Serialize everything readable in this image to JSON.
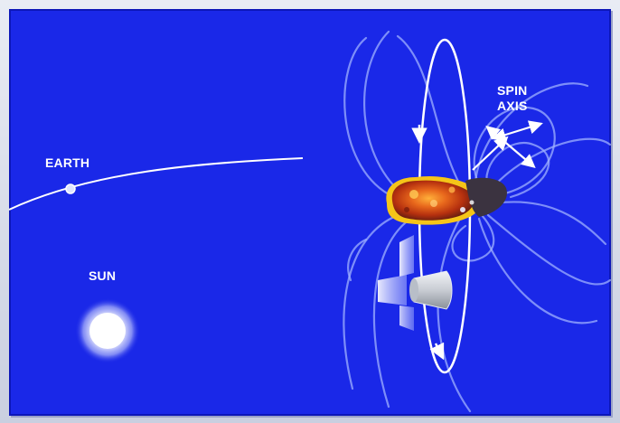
{
  "labels": {
    "earth": "EARTH",
    "sun": "SUN",
    "spin_axis_line1": "SPIN",
    "spin_axis_line2": "AXIS"
  },
  "colors": {
    "background": "#1a28e8",
    "field_lines": "#9fb0ff",
    "orbit_line": "#ffffff",
    "asteroid_core": "#c2410c",
    "asteroid_shadow": "#3b3340",
    "asteroid_rim": "#f5c518",
    "sun_glow": "#ffffff"
  }
}
